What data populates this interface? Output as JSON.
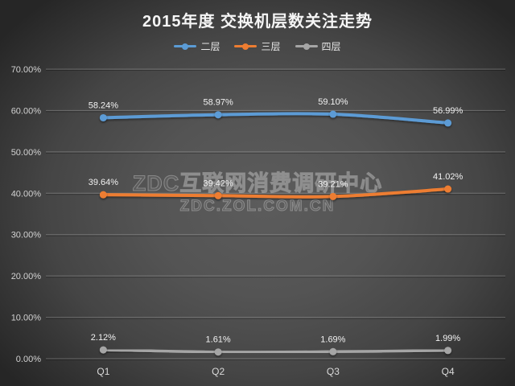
{
  "watermark": {
    "line1": "ZDC互联网消费调研中心",
    "line2": "ZDC.ZOL.COM.CN"
  },
  "colors": {
    "background_edge": "#262626",
    "background_center": "#5c5c5c",
    "gridline": "rgba(255,255,255,0.24)",
    "axis_label": "#d2d2d2",
    "data_label": "#f2f2f2",
    "title_text": "#f5f5f5"
  },
  "chart_data": {
    "type": "line",
    "title": "2015年度 交换机层数关注走势",
    "categories": [
      "Q1",
      "Q2",
      "Q3",
      "Q4"
    ],
    "series": [
      {
        "name": "二层",
        "color": "#5B9BD5",
        "line_width": 4,
        "values": [
          58.24,
          58.97,
          59.1,
          56.99
        ],
        "data_labels": [
          "58.24%",
          "58.97%",
          "59.10%",
          "56.99%"
        ]
      },
      {
        "name": "三层",
        "color": "#ED7D31",
        "line_width": 4,
        "values": [
          39.64,
          39.42,
          39.21,
          41.02
        ],
        "data_labels": [
          "39.64%",
          "39.42%",
          "39.21%",
          "41.02%"
        ]
      },
      {
        "name": "四层",
        "color": "#A5A5A5",
        "line_width": 3.5,
        "values": [
          2.12,
          1.61,
          1.69,
          1.99
        ],
        "data_labels": [
          "2.12%",
          "1.61%",
          "1.69%",
          "1.99%"
        ]
      }
    ],
    "ylim": [
      0,
      70
    ],
    "y_step": 10,
    "y_tick_labels": [
      "0.00%",
      "10.00%",
      "20.00%",
      "30.00%",
      "40.00%",
      "50.00%",
      "60.00%",
      "70.00%"
    ],
    "xlabel": "",
    "ylabel": "",
    "grid": true,
    "legend_position": "top",
    "marker": "circle",
    "smooth": true
  }
}
